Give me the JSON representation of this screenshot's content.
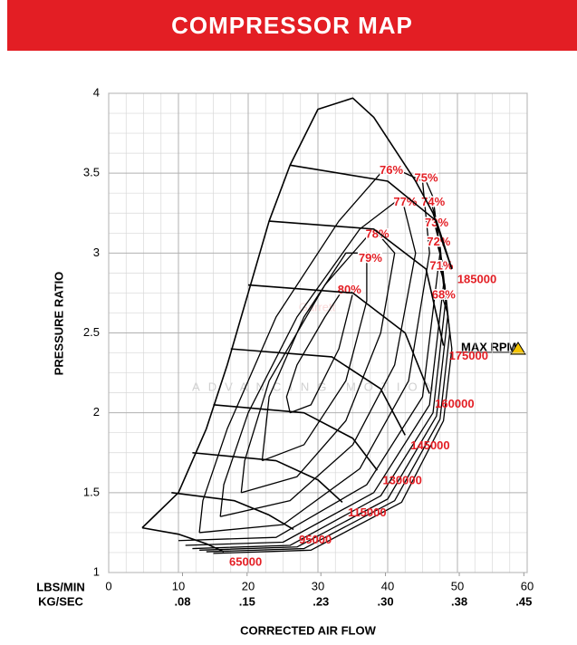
{
  "header": {
    "title": "COMPRESSOR MAP"
  },
  "chart_data": {
    "type": "line",
    "xlabel": "CORRECTED AIR FLOW",
    "ylabel": "PRESSURE RATIO",
    "xunit_label": "LBS/MIN",
    "x2unit_label": "KG/SEC",
    "xlim": [
      0,
      60
    ],
    "xticks": [
      0,
      10,
      20,
      30,
      40,
      50,
      60
    ],
    "x2lim": [
      0,
      0.4536
    ],
    "x2ticks": [
      {
        "value": 0.08,
        "label": ".08"
      },
      {
        "value": 0.15,
        "label": ".15"
      },
      {
        "value": 0.23,
        "label": ".23"
      },
      {
        "value": 0.3,
        "label": ".30"
      },
      {
        "value": 0.38,
        "label": ".38"
      },
      {
        "value": 0.45,
        "label": ".45"
      }
    ],
    "ylim": [
      1,
      4
    ],
    "yticks": [
      1,
      1.5,
      2,
      2.5,
      3,
      3.5,
      4
    ],
    "grid": true,
    "watermark": {
      "brand": "Garrett",
      "tagline": "ADVANCING MOTION"
    },
    "max_rpm_label": "MAX RPM",
    "surge_line": {
      "color": "#000000",
      "x": [
        4.8,
        10,
        14,
        17,
        20,
        23,
        26,
        30,
        35,
        38,
        41,
        44,
        46.5,
        48,
        49.2
      ],
      "values": [
        1.28,
        1.5,
        1.9,
        2.3,
        2.75,
        3.2,
        3.55,
        3.9,
        3.97,
        3.85,
        3.65,
        3.45,
        3.25,
        3.05,
        2.9
      ]
    },
    "series": [
      {
        "name": "65000",
        "color": "#000000",
        "x": [
          4.8,
          10,
          14,
          16.5
        ],
        "values": [
          1.28,
          1.24,
          1.18,
          1.13
        ]
      },
      {
        "name": "95000",
        "color": "#000000",
        "x": [
          9,
          18,
          23,
          26.5
        ],
        "values": [
          1.5,
          1.45,
          1.36,
          1.27
        ]
      },
      {
        "name": "115000",
        "color": "#000000",
        "x": [
          12,
          24,
          30,
          33.5
        ],
        "values": [
          1.75,
          1.7,
          1.58,
          1.44
        ]
      },
      {
        "name": "130000",
        "color": "#000000",
        "x": [
          15,
          28,
          35,
          38.5
        ],
        "values": [
          2.05,
          2.0,
          1.84,
          1.64
        ]
      },
      {
        "name": "145000",
        "color": "#000000",
        "x": [
          17.5,
          32,
          39,
          42.5
        ],
        "values": [
          2.4,
          2.35,
          2.15,
          1.86
        ]
      },
      {
        "name": "160000",
        "color": "#000000",
        "x": [
          20,
          35,
          42.5,
          46
        ],
        "values": [
          2.8,
          2.75,
          2.5,
          2.12
        ]
      },
      {
        "name": "175000",
        "color": "#000000",
        "x": [
          23,
          38,
          45.5,
          48
        ],
        "values": [
          3.2,
          3.15,
          2.9,
          2.42
        ]
      },
      {
        "name": "185000",
        "color": "#000000",
        "x": [
          26,
          40,
          47,
          49.2
        ],
        "values": [
          3.55,
          3.45,
          3.2,
          2.9
        ]
      }
    ],
    "contour_color": "#000000",
    "label_color": "#e31e24",
    "contours": [
      {
        "name": "80%",
        "x": [
          26,
          29,
          33,
          35,
          34,
          31,
          27,
          25.5,
          26
        ],
        "values": [
          2.0,
          2.05,
          2.4,
          2.75,
          2.8,
          2.6,
          2.3,
          2.1,
          2.0
        ]
      },
      {
        "name": "79%",
        "x": [
          22,
          28,
          34,
          37,
          37,
          34,
          28,
          23,
          22
        ],
        "values": [
          1.7,
          1.8,
          2.2,
          2.7,
          3.0,
          3.0,
          2.6,
          2.1,
          1.7
        ]
      },
      {
        "name": "78%",
        "x": [
          19,
          27,
          34,
          39,
          41,
          38,
          31,
          23,
          19.5,
          19
        ],
        "values": [
          1.5,
          1.6,
          1.95,
          2.5,
          3.0,
          3.15,
          2.8,
          2.2,
          1.7,
          1.5
        ]
      },
      {
        "name": "77%",
        "x": [
          16,
          26,
          35,
          41,
          44,
          42,
          36,
          27,
          20,
          16.5,
          16
        ],
        "values": [
          1.35,
          1.45,
          1.8,
          2.3,
          3.0,
          3.35,
          3.15,
          2.6,
          2.0,
          1.55,
          1.35
        ]
      },
      {
        "name": "76%",
        "x": [
          13,
          25,
          36,
          43,
          46,
          45,
          40,
          33,
          24,
          17,
          13.5,
          13
        ],
        "values": [
          1.25,
          1.3,
          1.65,
          2.2,
          3.0,
          3.45,
          3.55,
          3.2,
          2.6,
          1.9,
          1.45,
          1.25
        ]
      },
      {
        "name": "75%",
        "x": [
          10,
          24,
          37,
          45,
          47.5,
          46.5,
          45
        ],
        "values": [
          1.2,
          1.22,
          1.55,
          2.1,
          3.0,
          3.35,
          3.5
        ]
      },
      {
        "name": "74%",
        "x": [
          11,
          25,
          38,
          46,
          48,
          47,
          46
        ],
        "values": [
          1.17,
          1.19,
          1.5,
          2.05,
          2.8,
          3.2,
          3.35
        ]
      },
      {
        "name": "73%",
        "x": [
          12,
          26,
          39,
          46.5,
          48.3,
          47.5,
          46.5
        ],
        "values": [
          1.15,
          1.17,
          1.48,
          2.0,
          2.7,
          3.05,
          3.22
        ]
      },
      {
        "name": "72%",
        "x": [
          13,
          27,
          40,
          47,
          48.6,
          47.8,
          46.8
        ],
        "values": [
          1.14,
          1.16,
          1.46,
          1.98,
          2.6,
          2.95,
          3.1
        ]
      },
      {
        "name": "71%",
        "x": [
          14,
          28,
          41,
          47.5,
          48.9,
          48.2,
          47.2
        ],
        "values": [
          1.13,
          1.15,
          1.45,
          1.96,
          2.5,
          2.8,
          2.95
        ]
      },
      {
        "name": "68%",
        "x": [
          15,
          29,
          42,
          48,
          49.2,
          48.6,
          47.5
        ],
        "values": [
          1.12,
          1.14,
          1.44,
          1.95,
          2.4,
          2.62,
          2.77
        ]
      }
    ]
  }
}
